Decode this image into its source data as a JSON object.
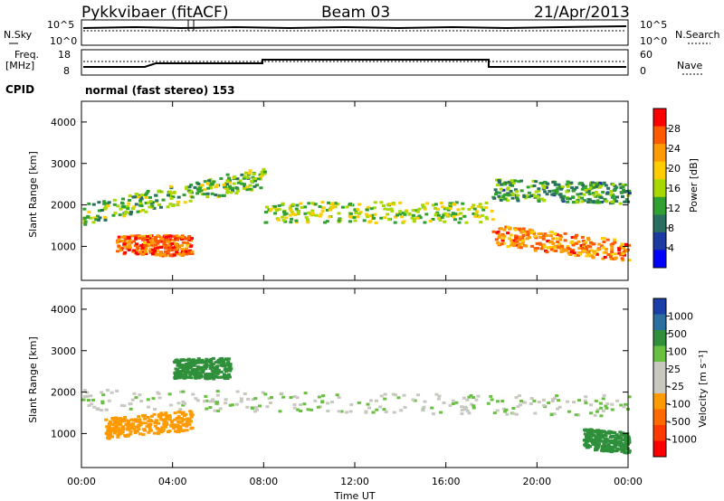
{
  "header": {
    "radar_title": "Pykkvibaer (fitACF)",
    "beam": "Beam 03",
    "date": "21/Apr/2013"
  },
  "top_panels": {
    "nsky_label": "N.Sky",
    "nsearch_label": "N.Search",
    "noise_ticks_left": [
      "10^5",
      "10^0"
    ],
    "noise_ticks_right": [
      "10^5",
      "10^0"
    ],
    "freq_label_line1": "Freq.",
    "freq_label_line2": "[MHz]",
    "freq_ticks": [
      "18",
      "8"
    ],
    "nave_label": "Nave",
    "nave_ticks": [
      "60",
      "0"
    ],
    "cpid_label": "CPID",
    "cpid_value": "normal (fast stereo) 153"
  },
  "chart_data": [
    {
      "type": "heatmap",
      "name": "power",
      "xlabel": "",
      "ylabel": "Slant Range [km]",
      "x_range_hours": [
        0,
        24
      ],
      "ylim": [
        180,
        4500
      ],
      "y_ticks": [
        1000,
        2000,
        3000,
        4000
      ],
      "colorbar_label": "Power [dB]",
      "colorbar_ticks": [
        "28",
        "24",
        "20",
        "16",
        "12",
        "8",
        "4"
      ],
      "colorbar_colors": [
        "#ff0000",
        "#ff5a00",
        "#ff9a00",
        "#ffcc00",
        "#a8d800",
        "#30a030",
        "#2a7060",
        "#1c3aa0",
        "#0000ff"
      ],
      "scatter_bands": [
        {
          "t_start": 0.0,
          "t_end": 8.0,
          "range_start": 1800,
          "range_end": 2700,
          "power_db": 14
        },
        {
          "t_start": 8.0,
          "t_end": 18.0,
          "range_start": 1850,
          "range_end": 1850,
          "power_db": 16
        },
        {
          "t_start": 18.0,
          "t_end": 24.0,
          "range_start": 2400,
          "range_end": 2300,
          "power_db": 12
        },
        {
          "t_start": 1.5,
          "t_end": 4.8,
          "range_start": 1050,
          "range_end": 1050,
          "power_db": 26
        },
        {
          "t_start": 18.0,
          "t_end": 24.0,
          "range_start": 1300,
          "range_end": 900,
          "power_db": 24
        }
      ]
    },
    {
      "type": "heatmap",
      "name": "velocity",
      "xlabel": "Time UT",
      "ylabel": "Slant Range [km]",
      "x_range_hours": [
        0,
        24
      ],
      "ylim": [
        180,
        4500
      ],
      "y_ticks": [
        1000,
        2000,
        3000,
        4000
      ],
      "x_ticks": [
        "00:00",
        "04:00",
        "08:00",
        "12:00",
        "16:00",
        "20:00",
        "00:00"
      ],
      "colorbar_label": "Velocity [m s⁻¹]",
      "colorbar_ticks": [
        "1000",
        "500",
        "100",
        "25",
        "-25",
        "-100",
        "-500",
        "-1000"
      ],
      "colorbar_colors": [
        "#1a3fa8",
        "#2a6fa0",
        "#2f8f3a",
        "#68c040",
        "#c8c8c0",
        "#c8c8c0",
        "#ff9a00",
        "#ff6a00",
        "#ff3a00",
        "#ff0000"
      ],
      "scatter_bands": [
        {
          "t_start": 0.0,
          "t_end": 24.0,
          "range_start": 1850,
          "range_end": 1700,
          "velocity": 0
        },
        {
          "t_start": 1.0,
          "t_end": 4.8,
          "range_start": 1150,
          "range_end": 1350,
          "velocity": -300
        },
        {
          "t_start": 22.0,
          "t_end": 24.0,
          "range_start": 900,
          "range_end": 800,
          "velocity": 300
        },
        {
          "t_start": 4.0,
          "t_end": 6.5,
          "range_start": 2600,
          "range_end": 2600,
          "velocity": 400
        }
      ]
    }
  ]
}
